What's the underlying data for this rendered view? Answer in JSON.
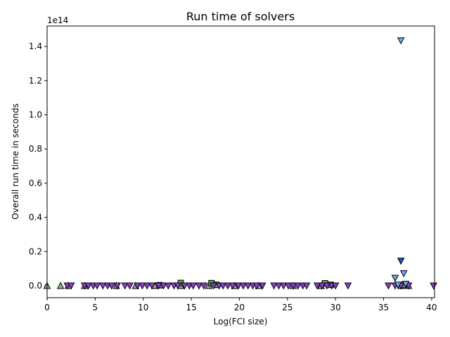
{
  "chart_data": {
    "type": "scatter",
    "title": "Run time of solvers",
    "xlabel": "Log(FCI size)",
    "ylabel": "Overall run time in seconds",
    "y_offset_label": "1e14",
    "y_scale": 100000000000000.0,
    "xlim": [
      0,
      40.3
    ],
    "ylim": [
      -0.07,
      1.52
    ],
    "xticks": [
      0,
      5,
      10,
      15,
      20,
      25,
      30,
      35,
      40
    ],
    "yticks": [
      0.0,
      0.2,
      0.4,
      0.6,
      0.8,
      1.0,
      1.2,
      1.4
    ],
    "ytick_labels": [
      "0.0",
      "0.2",
      "0.4",
      "0.6",
      "0.8",
      "1.0",
      "1.2",
      "1.4"
    ],
    "grid": false,
    "legend": "none",
    "series": [
      {
        "marker": "triangle-up",
        "color": "#7fbf7f",
        "points": [
          [
            0.0,
            0.0
          ],
          [
            1.4,
            0.0
          ],
          [
            2.2,
            0.0
          ],
          [
            3.9,
            0.0
          ],
          [
            7.2,
            0.0
          ],
          [
            9.2,
            0.0
          ],
          [
            11.2,
            0.0
          ],
          [
            13.9,
            0.0
          ],
          [
            16.8,
            0.0
          ],
          [
            19.5,
            0.0
          ],
          [
            22.0,
            0.0
          ],
          [
            25.6,
            0.0
          ],
          [
            28.5,
            0.0
          ],
          [
            36.8,
            0.0
          ],
          [
            37.6,
            0.0
          ]
        ]
      },
      {
        "marker": "square",
        "color": "#5a9e5a",
        "points": [
          [
            11.7,
            0.003
          ],
          [
            13.9,
            0.016
          ],
          [
            17.1,
            0.015
          ],
          [
            17.6,
            0.005
          ],
          [
            28.9,
            0.014
          ],
          [
            29.5,
            0.005
          ],
          [
            37.1,
            0.004
          ]
        ]
      },
      {
        "marker": "triangle-down",
        "color": "#8a3fd1",
        "points": [
          [
            2.1,
            0.0
          ],
          [
            2.5,
            0.0
          ],
          [
            3.9,
            0.0
          ],
          [
            4.3,
            0.0
          ],
          [
            4.8,
            0.0
          ],
          [
            5.2,
            0.0
          ],
          [
            5.8,
            0.0
          ],
          [
            6.3,
            0.0
          ],
          [
            6.7,
            0.0
          ],
          [
            7.3,
            0.0
          ],
          [
            8.1,
            0.0
          ],
          [
            8.6,
            0.0
          ],
          [
            9.4,
            0.0
          ],
          [
            9.9,
            0.0
          ],
          [
            10.4,
            0.0
          ],
          [
            10.9,
            0.0
          ],
          [
            11.6,
            0.0
          ],
          [
            12.1,
            0.0
          ],
          [
            12.6,
            0.0
          ],
          [
            13.2,
            0.0
          ],
          [
            13.6,
            0.0
          ],
          [
            14.3,
            0.0
          ],
          [
            14.8,
            0.0
          ],
          [
            15.2,
            0.0
          ],
          [
            15.8,
            0.0
          ],
          [
            16.3,
            0.0
          ],
          [
            17.3,
            0.0
          ],
          [
            17.9,
            0.0
          ],
          [
            18.3,
            0.0
          ],
          [
            18.8,
            0.0
          ],
          [
            19.3,
            0.0
          ],
          [
            19.9,
            0.0
          ],
          [
            20.4,
            0.0
          ],
          [
            20.9,
            0.0
          ],
          [
            21.4,
            0.0
          ],
          [
            21.8,
            0.0
          ],
          [
            22.4,
            0.0
          ],
          [
            23.6,
            0.0
          ],
          [
            24.1,
            0.0
          ],
          [
            24.6,
            0.0
          ],
          [
            25.1,
            0.0
          ],
          [
            25.6,
            0.0
          ],
          [
            26.1,
            0.0
          ],
          [
            26.6,
            0.0
          ],
          [
            27.0,
            0.0
          ],
          [
            28.1,
            0.0
          ],
          [
            28.6,
            0.0
          ],
          [
            29.1,
            0.0
          ],
          [
            29.6,
            0.0
          ],
          [
            30.0,
            0.0
          ],
          [
            31.3,
            0.0
          ],
          [
            35.5,
            0.0
          ],
          [
            36.2,
            0.0
          ],
          [
            36.8,
            0.0
          ],
          [
            37.6,
            0.0
          ],
          [
            40.2,
            0.0
          ]
        ]
      },
      {
        "marker": "triangle-down",
        "color": "#1f4fd0",
        "points": [
          [
            36.8,
            0.145
          ]
        ]
      },
      {
        "marker": "triangle-down",
        "color": "#6fa8e8",
        "points": [
          [
            36.8,
            1.435
          ],
          [
            37.1,
            0.072
          ],
          [
            36.2,
            0.045
          ],
          [
            37.3,
            0.01
          ],
          [
            36.5,
            0.005
          ]
        ]
      }
    ]
  }
}
